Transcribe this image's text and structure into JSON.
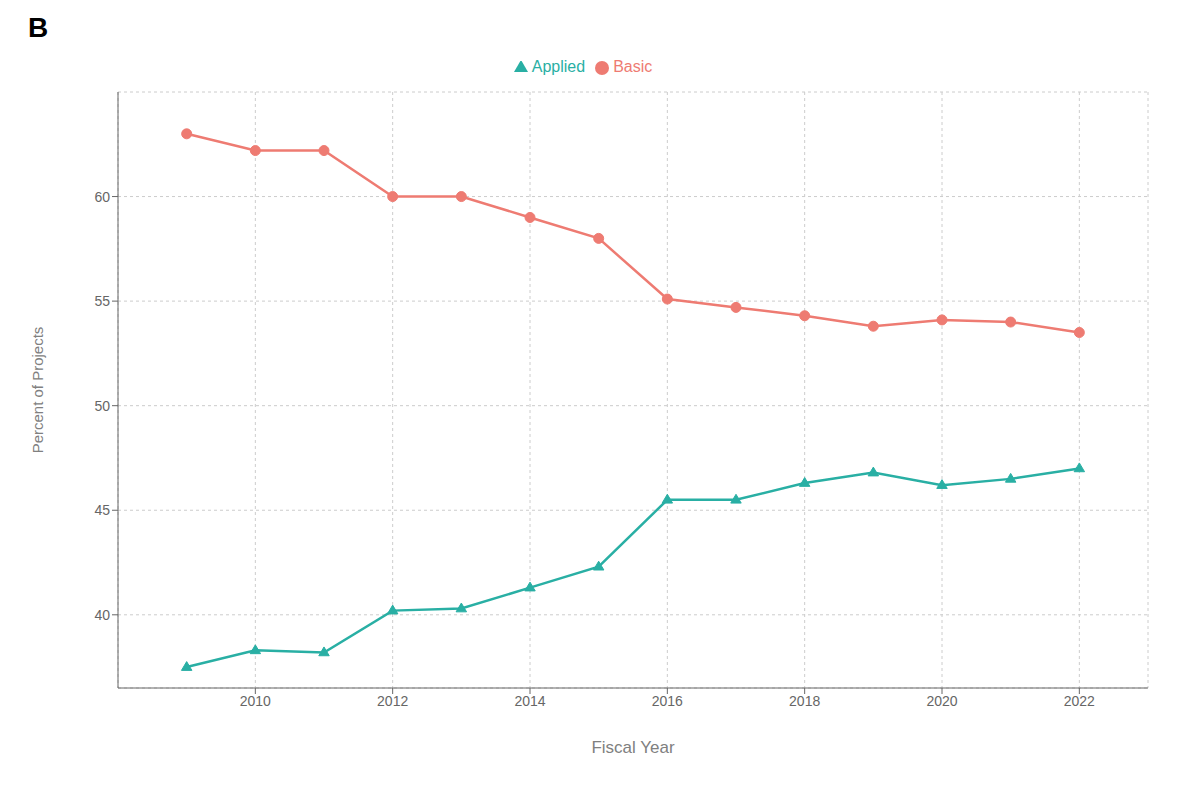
{
  "chart_data": {
    "type": "line",
    "title": "B",
    "xlabel": "Fiscal Year",
    "ylabel": "Percent of Projects",
    "x": [
      2009,
      2010,
      2011,
      2012,
      2013,
      2014,
      2015,
      2016,
      2017,
      2018,
      2019,
      2020,
      2021,
      2022
    ],
    "series": [
      {
        "name": "Basic",
        "color": "#EE7B72",
        "marker": "circle",
        "values": [
          63.0,
          62.2,
          62.2,
          60.0,
          60.0,
          59.0,
          58.0,
          55.1,
          54.7,
          54.3,
          53.8,
          54.1,
          54.0,
          53.5
        ]
      },
      {
        "name": "Applied",
        "color": "#29AFA4",
        "marker": "triangle",
        "values": [
          37.5,
          38.3,
          38.2,
          40.2,
          40.3,
          41.3,
          42.3,
          45.5,
          45.5,
          46.3,
          46.8,
          46.2,
          46.5,
          47.0
        ]
      }
    ],
    "xlim": [
      2008,
      2023
    ],
    "xticks": [
      2010,
      2012,
      2014,
      2016,
      2018,
      2020,
      2022
    ],
    "ylim": [
      36.5,
      65
    ],
    "yticks": [
      40,
      45,
      50,
      55,
      60
    ],
    "grid": true,
    "legend": "upper center"
  }
}
